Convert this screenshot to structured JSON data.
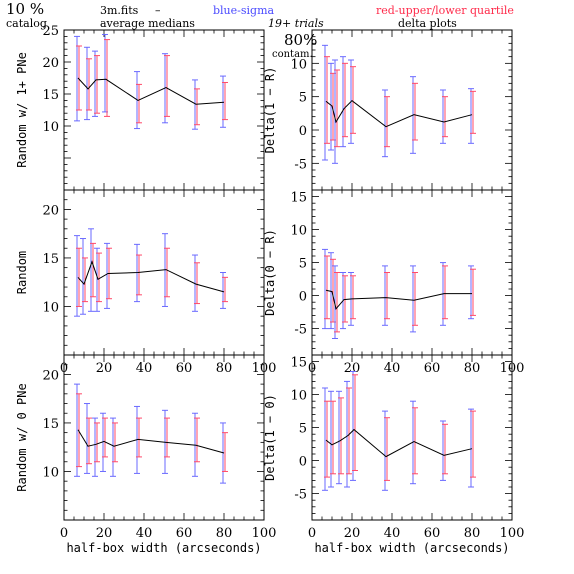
{
  "header": {
    "percent": "10 %",
    "catalog": "catalog",
    "file": "3m.fits",
    "dash": "–",
    "averages": "average medians",
    "blue": "blue-sigma",
    "red": "red-upper/lower quartile",
    "trials": "19+ trials",
    "contam_pct": "80%",
    "contam": "contam.",
    "delta": "delta plots"
  },
  "colors": {
    "median": "#000000",
    "sigma": "#6a6aff",
    "quartile": "#ff4a6a"
  },
  "chart_data": [
    {
      "type": "line",
      "ylabel": "Random w/ 1+ PNe",
      "xlim": [
        0,
        100
      ],
      "ylim": [
        0,
        25
      ],
      "xticks": [],
      "yticks": [
        10,
        15,
        20,
        25
      ],
      "x": [
        7,
        12,
        16,
        21,
        37,
        51,
        66,
        80
      ],
      "median": [
        17.5,
        15.8,
        17.2,
        17.3,
        14.0,
        16.0,
        13.4,
        13.7
      ],
      "sigma_low": [
        10.8,
        11.0,
        11.5,
        12.2,
        9.6,
        10.5,
        9.5,
        9.8
      ],
      "sigma_high": [
        24.0,
        22.3,
        21.7,
        24.3,
        18.5,
        21.3,
        17.2,
        17.8
      ],
      "quart_low": [
        12.5,
        12.5,
        12.0,
        11.5,
        10.5,
        11.5,
        10.2,
        11.0
      ],
      "quart_high": [
        22.5,
        20.5,
        21.0,
        23.5,
        16.5,
        21.0,
        15.8,
        16.8
      ]
    },
    {
      "type": "line",
      "ylabel": "Delta(1 − R)",
      "xlim": [
        0,
        100
      ],
      "ylim": [
        -9,
        15
      ],
      "xticks": [],
      "yticks": [
        -5,
        0,
        5,
        10
      ],
      "x": [
        7,
        10,
        12,
        16,
        20,
        37,
        51,
        66,
        80
      ],
      "median": [
        4.3,
        3.6,
        1.2,
        3.2,
        4.4,
        0.5,
        2.3,
        1.2,
        2.3
      ],
      "sigma_low": [
        -4.5,
        -3.0,
        -5.0,
        -2.5,
        -2.0,
        -4.0,
        -3.5,
        -2.0,
        -2.0
      ],
      "sigma_high": [
        12.7,
        10.0,
        10.5,
        11.0,
        10.5,
        6.0,
        8.0,
        6.0,
        6.2
      ],
      "quart_low": [
        -2.0,
        -1.5,
        -2.5,
        -1.0,
        -0.5,
        -2.5,
        -1.5,
        -1.0,
        -0.5
      ],
      "quart_high": [
        11.0,
        8.5,
        9.0,
        10.0,
        9.5,
        5.0,
        7.0,
        5.0,
        5.8
      ]
    },
    {
      "type": "line",
      "ylabel": "Random",
      "xlim": [
        0,
        100
      ],
      "ylim": [
        5,
        22
      ],
      "xticks": [
        0,
        20,
        40,
        60,
        80,
        100
      ],
      "yticks": [
        10,
        15,
        20
      ],
      "x": [
        7,
        10,
        14,
        17,
        22,
        37,
        51,
        66,
        80
      ],
      "median": [
        13.0,
        12.3,
        14.6,
        12.8,
        13.4,
        13.5,
        13.8,
        12.3,
        11.5
      ],
      "sigma_low": [
        9.0,
        9.2,
        9.5,
        9.5,
        9.8,
        10.5,
        10.0,
        9.5,
        9.8
      ],
      "sigma_high": [
        17.3,
        17.0,
        18.0,
        16.0,
        16.5,
        16.4,
        17.5,
        15.3,
        13.5
      ],
      "quart_low": [
        10.0,
        10.5,
        11.0,
        10.5,
        10.8,
        11.2,
        11.0,
        10.3,
        10.5
      ],
      "quart_high": [
        16.0,
        15.0,
        16.5,
        15.5,
        16.0,
        15.3,
        16.0,
        14.5,
        13.0
      ]
    },
    {
      "type": "line",
      "ylabel": "Delta(0 − R)",
      "xlim": [
        0,
        100
      ],
      "ylim": [
        -9,
        16
      ],
      "xticks": [
        0,
        20,
        40,
        60,
        80,
        100
      ],
      "yticks": [
        -5,
        0,
        5,
        10,
        15
      ],
      "x": [
        7,
        10,
        12,
        16,
        20,
        37,
        51,
        66,
        80
      ],
      "median": [
        0.8,
        0.6,
        -2.0,
        -0.6,
        -0.5,
        -0.3,
        -0.7,
        0.3,
        0.3
      ],
      "sigma_low": [
        -5.0,
        -5.0,
        -6.5,
        -5.0,
        -4.5,
        -4.5,
        -5.5,
        -4.5,
        -3.5
      ],
      "sigma_high": [
        7.0,
        6.5,
        4.5,
        3.5,
        3.5,
        4.5,
        4.5,
        5.0,
        4.5
      ],
      "quart_low": [
        -3.5,
        -4.0,
        -5.5,
        -4.0,
        -3.5,
        -3.5,
        -4.5,
        -3.5,
        -3.0
      ],
      "quart_high": [
        6.0,
        5.5,
        3.5,
        3.0,
        3.0,
        3.5,
        3.5,
        4.5,
        4.0
      ]
    },
    {
      "type": "line",
      "ylabel": "Random w/ 0 PNe",
      "xlabel": "half-box width (arcseconds)",
      "xlim": [
        0,
        100
      ],
      "ylim": [
        5,
        22
      ],
      "xticks": [
        0,
        20,
        40,
        60,
        80,
        100
      ],
      "yticks": [
        10,
        15,
        20
      ],
      "x": [
        7,
        12,
        16,
        20,
        25,
        37,
        51,
        66,
        80
      ],
      "median": [
        14.3,
        12.6,
        12.8,
        13.1,
        12.6,
        13.3,
        13.0,
        12.7,
        11.9
      ],
      "sigma_low": [
        9.5,
        9.8,
        9.5,
        10.0,
        9.5,
        9.8,
        9.8,
        9.5,
        8.8
      ],
      "sigma_high": [
        19.0,
        17.0,
        15.5,
        16.0,
        15.5,
        16.7,
        16.3,
        16.0,
        15.0
      ],
      "quart_low": [
        10.5,
        10.8,
        11.0,
        11.5,
        11.0,
        11.5,
        11.5,
        11.0,
        10.0
      ],
      "quart_high": [
        18.0,
        15.5,
        15.0,
        15.5,
        15.0,
        15.5,
        15.5,
        15.5,
        14.0
      ]
    },
    {
      "type": "line",
      "ylabel": "Delta(1 − 0)",
      "xlabel": "half-box width (arcseconds)",
      "xlim": [
        0,
        100
      ],
      "ylim": [
        -9,
        16
      ],
      "xticks": [
        0,
        20,
        40,
        60,
        80,
        100
      ],
      "yticks": [
        -5,
        0,
        5,
        10,
        15
      ],
      "x": [
        7,
        10,
        14,
        18,
        21,
        37,
        51,
        66,
        80
      ],
      "median": [
        3.1,
        2.4,
        3.0,
        3.8,
        4.7,
        0.6,
        2.9,
        0.8,
        1.8
      ],
      "sigma_low": [
        -4.5,
        -4.0,
        -3.5,
        -4.0,
        -3.0,
        -4.5,
        -3.5,
        -3.0,
        -4.0
      ],
      "sigma_high": [
        11.0,
        10.5,
        10.5,
        12.0,
        13.5,
        7.5,
        9.0,
        6.0,
        7.8
      ],
      "quart_low": [
        -2.5,
        -2.0,
        -2.0,
        -2.0,
        -1.5,
        -3.0,
        -2.0,
        -2.0,
        -2.5
      ],
      "quart_high": [
        9.0,
        9.0,
        9.5,
        11.0,
        13.0,
        6.5,
        8.0,
        5.5,
        7.5
      ]
    }
  ]
}
